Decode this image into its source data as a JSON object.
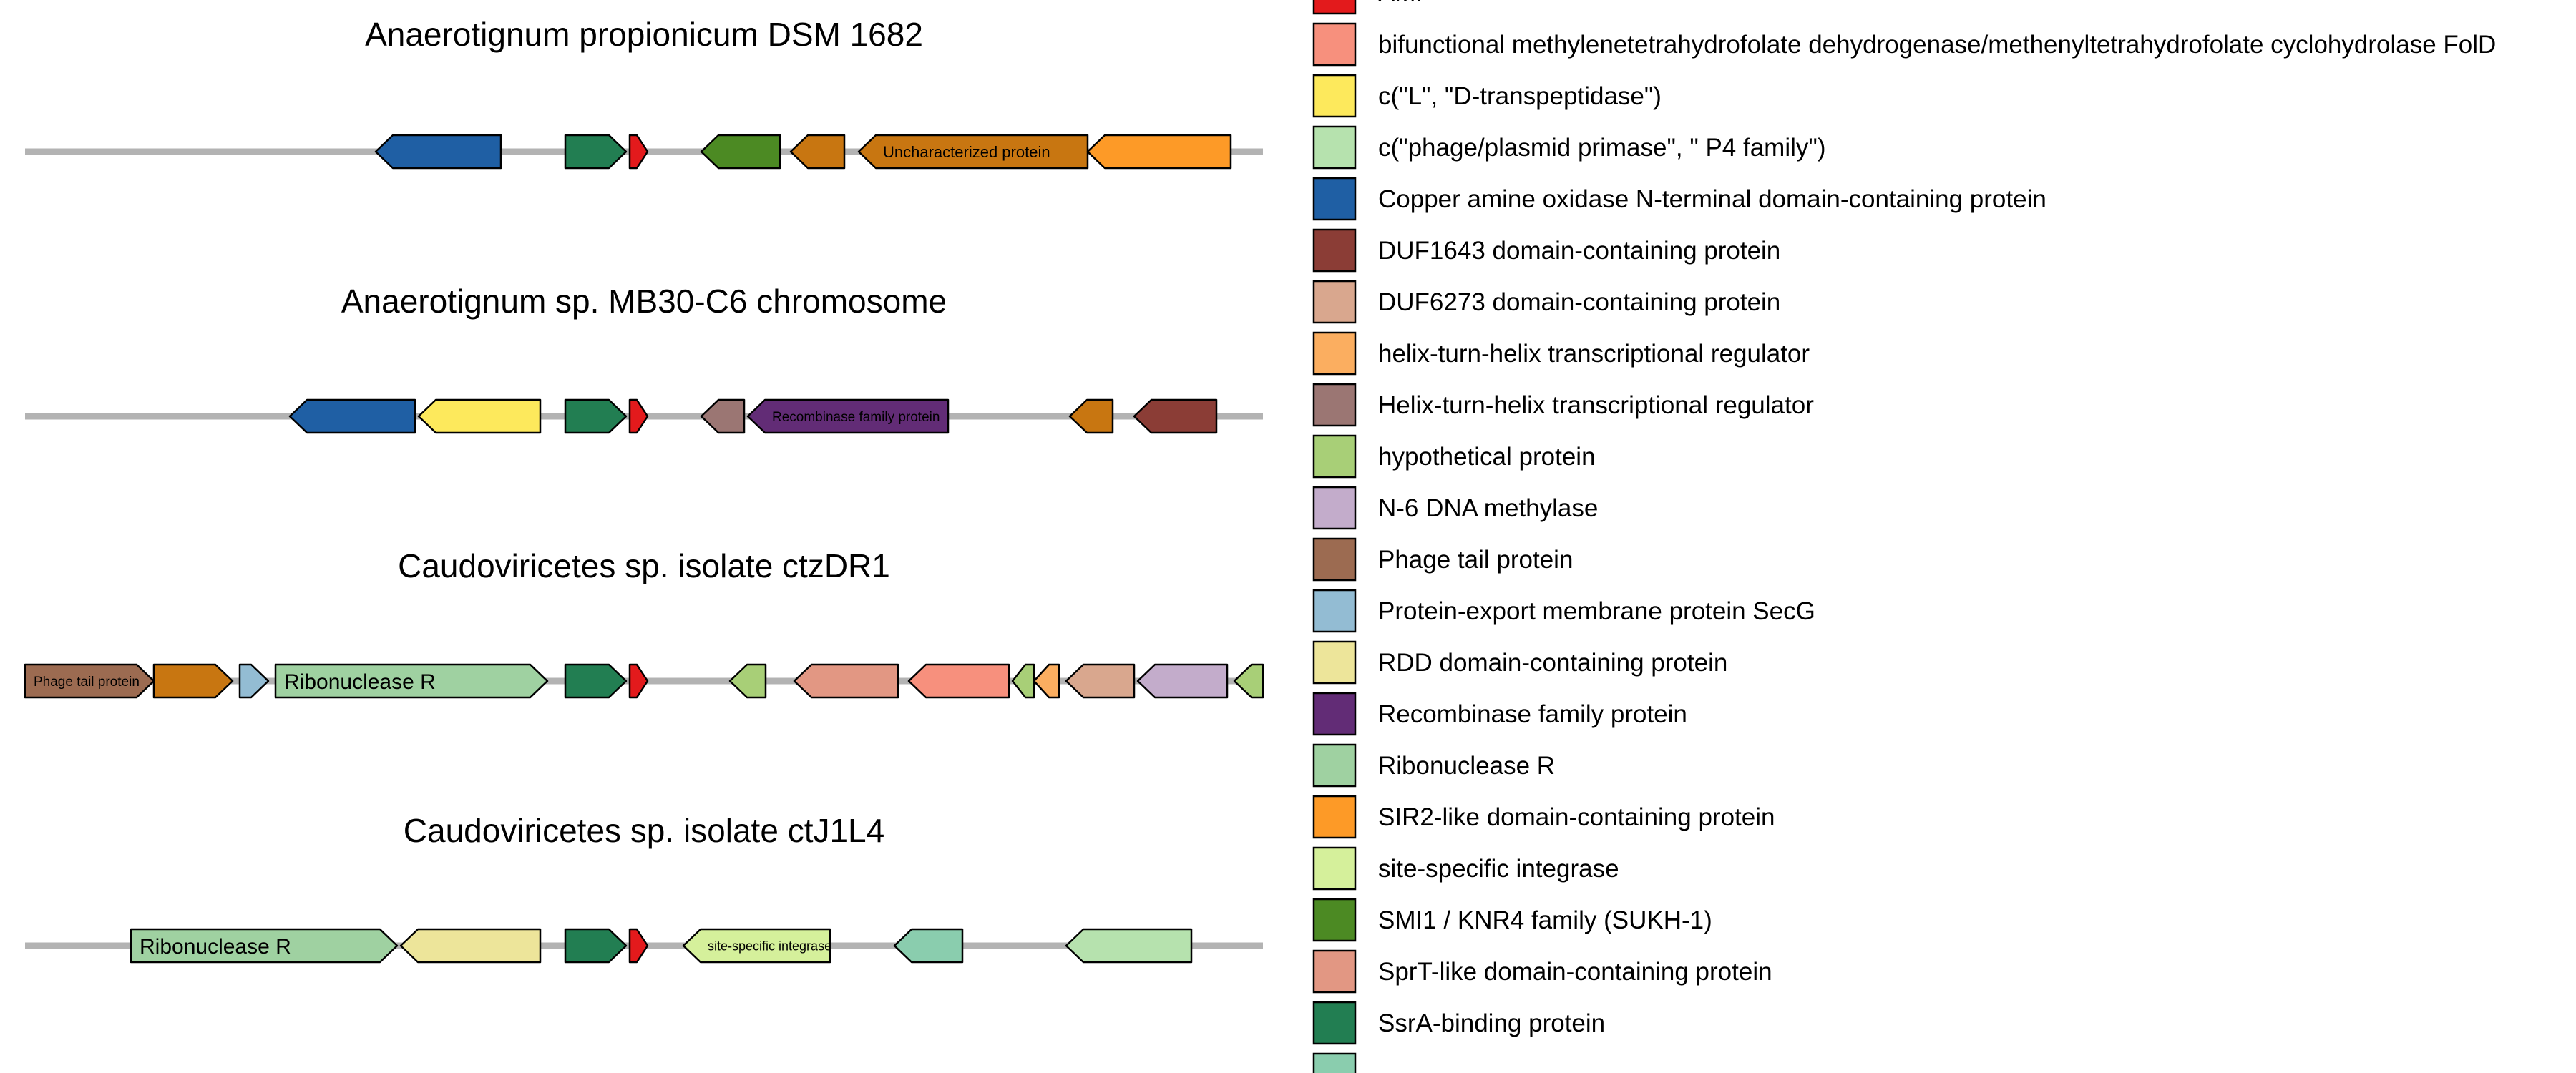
{
  "diagram": {
    "type": "gene-arrow-map",
    "genomes": [
      {
        "title": "Anaerotignum propionicum DSM 1682",
        "genes": [
          {
            "start": 525,
            "end": 700,
            "strand": "-",
            "color": "#1F5FA4",
            "label": ""
          },
          {
            "start": 790,
            "end": 875,
            "strand": "+",
            "color": "#227E52",
            "label": ""
          },
          {
            "start": 880,
            "end": 905,
            "strand": "+",
            "color": "#E31A1C",
            "label": ""
          },
          {
            "start": 980,
            "end": 1090,
            "strand": "-",
            "color": "#4C8A23",
            "label": ""
          },
          {
            "start": 1105,
            "end": 1180,
            "strand": "-",
            "color": "#C87611",
            "label": ""
          },
          {
            "start": 1200,
            "end": 1520,
            "strand": "-",
            "color": "#C87611",
            "label": "Uncharacterized protein",
            "label_size": 22
          },
          {
            "start": 1520,
            "end": 1720,
            "strand": "-",
            "color": "#FD9A27",
            "label": ""
          }
        ]
      },
      {
        "title": "Anaerotignum sp. MB30-C6 chromosome",
        "genes": [
          {
            "start": 405,
            "end": 580,
            "strand": "-",
            "color": "#1F5FA4",
            "label": ""
          },
          {
            "start": 585,
            "end": 755,
            "strand": "-",
            "color": "#FDE95C",
            "label": ""
          },
          {
            "start": 790,
            "end": 875,
            "strand": "+",
            "color": "#227E52",
            "label": ""
          },
          {
            "start": 880,
            "end": 905,
            "strand": "+",
            "color": "#E31A1C",
            "label": ""
          },
          {
            "start": 980,
            "end": 1040,
            "strand": "-",
            "color": "#9B7673",
            "label": ""
          },
          {
            "start": 1045,
            "end": 1325,
            "strand": "-",
            "color": "#622C76",
            "label": "Recombinase family protein",
            "label_size": 19
          },
          {
            "start": 1495,
            "end": 1555,
            "strand": "-",
            "color": "#C87611",
            "label": ""
          },
          {
            "start": 1585,
            "end": 1700,
            "strand": "-",
            "color": "#8B3D36",
            "label": ""
          }
        ]
      },
      {
        "title": "Caudoviricetes sp. isolate ctzDR1",
        "genes": [
          {
            "start": 35,
            "end": 215,
            "strand": "+",
            "color": "#9C6B51",
            "label": "Phage tail protein",
            "label_size": 19
          },
          {
            "start": 215,
            "end": 325,
            "strand": "+",
            "color": "#C87611",
            "label": ""
          },
          {
            "start": 335,
            "end": 375,
            "strand": "+",
            "color": "#93BCD3",
            "label": ""
          },
          {
            "start": 385,
            "end": 765,
            "strand": "+",
            "color": "#9FD1A1",
            "label": "Ribonuclease R",
            "label_size": 30
          },
          {
            "start": 790,
            "end": 875,
            "strand": "+",
            "color": "#227E52",
            "label": ""
          },
          {
            "start": 880,
            "end": 905,
            "strand": "+",
            "color": "#E31A1C",
            "label": ""
          },
          {
            "start": 1020,
            "end": 1070,
            "strand": "-",
            "color": "#A8CF77",
            "label": ""
          },
          {
            "start": 1110,
            "end": 1255,
            "strand": "-",
            "color": "#E29783",
            "label": ""
          },
          {
            "start": 1270,
            "end": 1410,
            "strand": "-",
            "color": "#F7907D",
            "label": ""
          },
          {
            "start": 1415,
            "end": 1445,
            "strand": "-",
            "color": "#A8CF77",
            "label": ""
          },
          {
            "start": 1445,
            "end": 1480,
            "strand": "-",
            "color": "#FBAE60",
            "label": ""
          },
          {
            "start": 1490,
            "end": 1585,
            "strand": "-",
            "color": "#D9A78E",
            "label": ""
          },
          {
            "start": 1590,
            "end": 1715,
            "strand": "-",
            "color": "#C3ACCB",
            "label": ""
          },
          {
            "start": 1725,
            "end": 1765,
            "strand": "-",
            "color": "#A8CF77",
            "label": ""
          }
        ]
      },
      {
        "title": "Caudoviricetes sp. isolate ctJ1L4",
        "genes": [
          {
            "start": 183,
            "end": 555,
            "strand": "+",
            "color": "#9FD1A1",
            "label": "Ribonuclease R",
            "label_size": 30
          },
          {
            "start": 560,
            "end": 755,
            "strand": "-",
            "color": "#EDE59A",
            "label": ""
          },
          {
            "start": 790,
            "end": 875,
            "strand": "+",
            "color": "#227E52",
            "label": ""
          },
          {
            "start": 880,
            "end": 905,
            "strand": "+",
            "color": "#E31A1C",
            "label": ""
          },
          {
            "start": 955,
            "end": 1160,
            "strand": "-",
            "color": "#D5F09B",
            "label": "site-specific integrase",
            "label_size": 18
          },
          {
            "start": 1250,
            "end": 1345,
            "strand": "-",
            "color": "#8ACDAE",
            "label": ""
          },
          {
            "start": 1490,
            "end": 1665,
            "strand": "-",
            "color": "#B6E2AE",
            "label": ""
          }
        ]
      }
    ]
  },
  "legend": {
    "items": [
      {
        "label": "AMP",
        "color": "#E31A1C"
      },
      {
        "label": "bifunctional methylenetetrahydrofolate dehydrogenase/methenyltetrahydrofolate cyclohydrolase FolD",
        "color": "#F7907D"
      },
      {
        "label": "c(\"L\", \"D-transpeptidase\")",
        "color": "#FDE95C"
      },
      {
        "label": "c(\"phage/plasmid primase\", \" P4 family\")",
        "color": "#B6E2AE"
      },
      {
        "label": "Copper amine oxidase N-terminal domain-containing protein",
        "color": "#1F5FA4"
      },
      {
        "label": "DUF1643 domain-containing protein",
        "color": "#8B3D36"
      },
      {
        "label": "DUF6273 domain-containing protein",
        "color": "#D9A78E"
      },
      {
        "label": "helix-turn-helix transcriptional regulator",
        "color": "#FBAE60"
      },
      {
        "label": "Helix-turn-helix transcriptional regulator",
        "color": "#9B7673"
      },
      {
        "label": "hypothetical protein",
        "color": "#A8CF77"
      },
      {
        "label": "N-6 DNA methylase",
        "color": "#C3ACCB"
      },
      {
        "label": "Phage tail protein",
        "color": "#9C6B51"
      },
      {
        "label": "Protein-export membrane protein SecG",
        "color": "#93BCD3"
      },
      {
        "label": "RDD domain-containing protein",
        "color": "#EDE59A"
      },
      {
        "label": "Recombinase family protein",
        "color": "#622C76"
      },
      {
        "label": "Ribonuclease R",
        "color": "#9FD1A1"
      },
      {
        "label": "SIR2-like domain-containing protein",
        "color": "#FD9A27"
      },
      {
        "label": "site-specific integrase",
        "color": "#D5F09B"
      },
      {
        "label": "SMI1 / KNR4 family (SUKH-1)",
        "color": "#4C8A23"
      },
      {
        "label": "SprT-like domain-containing protein",
        "color": "#E29783"
      },
      {
        "label": "SsrA-binding protein",
        "color": "#227E52"
      },
      {
        "label": "",
        "color": "#8ACDAE"
      }
    ]
  }
}
